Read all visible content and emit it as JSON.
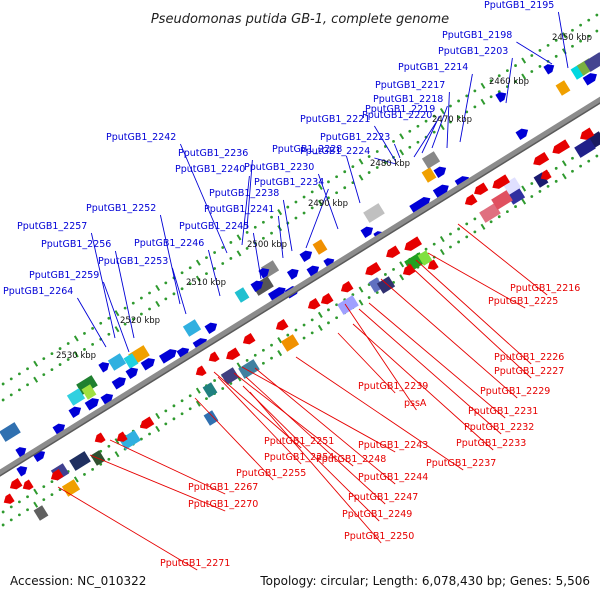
{
  "title": "Pseudomonas putida GB-1, complete genome",
  "footer": {
    "accession": "Accession: NC_010322",
    "summary": "Topology: circular; Length: 6,078,430 bp; Genes: 5,506"
  },
  "colors": {
    "forward": "#0000d6",
    "reverse": "#e60000",
    "backbone": "#8c8c8c",
    "ruler_dot": "#2f9a2f"
  },
  "ruler": [
    {
      "label": "2450 kbp"
    },
    {
      "label": "2460 kbp"
    },
    {
      "label": "2470 kbp"
    },
    {
      "label": "2480 kbp"
    },
    {
      "label": "2490 kbp"
    },
    {
      "label": "2500 kbp"
    },
    {
      "label": "2510 kbp"
    },
    {
      "label": "2520 kbp"
    },
    {
      "label": "2530 kbp"
    }
  ],
  "forward_labels": [
    {
      "text": "PputGB1_2195"
    },
    {
      "text": "PputGB1_2198"
    },
    {
      "text": "PputGB1_2203"
    },
    {
      "text": "PputGB1_2214"
    },
    {
      "text": "PputGB1_2217"
    },
    {
      "text": "PputGB1_2218"
    },
    {
      "text": "PputGB1_2219"
    },
    {
      "text": "PputGB1_2220"
    },
    {
      "text": "PputGB1_2221"
    },
    {
      "text": "PputGB1_2223"
    },
    {
      "text": "PputGB1_2224"
    },
    {
      "text": "PputGB1_2228"
    },
    {
      "text": "PputGB1_2230"
    },
    {
      "text": "PputGB1_2234"
    },
    {
      "text": "PputGB1_2236"
    },
    {
      "text": "PputGB1_2238"
    },
    {
      "text": "PputGB1_2240"
    },
    {
      "text": "PputGB1_2241"
    },
    {
      "text": "PputGB1_2242"
    },
    {
      "text": "PputGB1_2245"
    },
    {
      "text": "PputGB1_2246"
    },
    {
      "text": "PputGB1_2252"
    },
    {
      "text": "PputGB1_2253"
    },
    {
      "text": "PputGB1_2256"
    },
    {
      "text": "PputGB1_2257"
    },
    {
      "text": "PputGB1_2259"
    },
    {
      "text": "PputGB1_2264"
    }
  ],
  "reverse_labels": [
    {
      "text": "PputGB1_2216"
    },
    {
      "text": "PputGB1_2225"
    },
    {
      "text": "PputGB1_2226"
    },
    {
      "text": "PputGB1_2227"
    },
    {
      "text": "PputGB1_2229"
    },
    {
      "text": "PputGB1_2239"
    },
    {
      "text": "pssA"
    },
    {
      "text": "PputGB1_2231"
    },
    {
      "text": "PputGB1_2232"
    },
    {
      "text": "PputGB1_2233"
    },
    {
      "text": "PputGB1_2237"
    },
    {
      "text": "PputGB1_2243"
    },
    {
      "text": "PputGB1_2244"
    },
    {
      "text": "PputGB1_2248"
    },
    {
      "text": "PputGB1_2247"
    },
    {
      "text": "PputGB1_2249"
    },
    {
      "text": "PputGB1_2250"
    },
    {
      "text": "PputGB1_2251"
    },
    {
      "text": "PputGB1_2254"
    },
    {
      "text": "PputGB1_2255"
    },
    {
      "text": "PputGB1_2267"
    },
    {
      "text": "PputGB1_2270"
    },
    {
      "text": "PputGB1_2271"
    }
  ]
}
